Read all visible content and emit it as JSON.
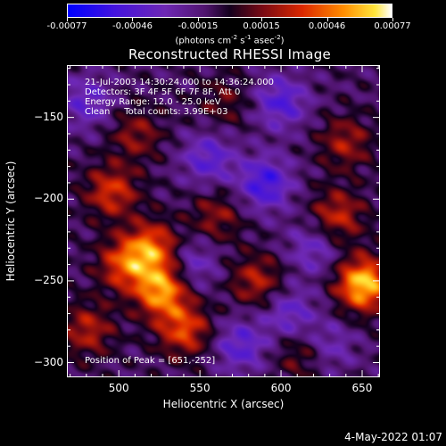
{
  "colorbar": {
    "ticks": [
      "-0.00077",
      "-0.00046",
      "-0.00015",
      "0.00015",
      "0.00046",
      "0.00077"
    ],
    "units_prefix": "(photons cm",
    "units_e1": "-2",
    "units_mid": " s",
    "units_e2": "-1",
    "units_mid2": " asec",
    "units_e3": "-2",
    "units_suffix": ")"
  },
  "chart_data": {
    "type": "heatmap",
    "title": "Reconstructed RHESSI Image",
    "xlabel": "Heliocentric X (arcsec)",
    "ylabel": "Heliocentric Y (arcsec)",
    "xlim": [
      468,
      661
    ],
    "ylim": [
      -309,
      -118
    ],
    "xticks": [
      500,
      550,
      600,
      650
    ],
    "yticks": [
      -150,
      -200,
      -250,
      -300
    ],
    "colorbar_range": [
      -0.00077,
      0.00077
    ],
    "peak_position": [
      651,
      -252
    ],
    "hotspots": [
      {
        "x": 651,
        "y": -252,
        "intensity": 1.0
      },
      {
        "x": 526,
        "y": -256,
        "intensity": 0.85
      },
      {
        "x": 520,
        "y": -230,
        "intensity": 0.7
      },
      {
        "x": 503,
        "y": -240,
        "intensity": 0.6
      },
      {
        "x": 495,
        "y": -195,
        "intensity": 0.55
      },
      {
        "x": 540,
        "y": -280,
        "intensity": 0.6
      },
      {
        "x": 585,
        "y": -250,
        "intensity": 0.45
      },
      {
        "x": 635,
        "y": -210,
        "intensity": 0.5
      },
      {
        "x": 640,
        "y": -165,
        "intensity": 0.4
      },
      {
        "x": 560,
        "y": -210,
        "intensity": 0.35
      },
      {
        "x": 510,
        "y": -160,
        "intensity": 0.35
      },
      {
        "x": 612,
        "y": -295,
        "intensity": 0.3
      },
      {
        "x": 480,
        "y": -280,
        "intensity": 0.45
      },
      {
        "x": 565,
        "y": -140,
        "intensity": 0.25
      }
    ],
    "coldspots": [
      {
        "x": 590,
        "y": -190,
        "intensity": -0.6
      },
      {
        "x": 555,
        "y": -175,
        "intensity": -0.45
      },
      {
        "x": 600,
        "y": -140,
        "intensity": -0.5
      },
      {
        "x": 575,
        "y": -290,
        "intensity": -0.45
      },
      {
        "x": 620,
        "y": -230,
        "intensity": -0.35
      },
      {
        "x": 480,
        "y": -140,
        "intensity": -0.4
      },
      {
        "x": 545,
        "y": -240,
        "intensity": -0.35
      },
      {
        "x": 630,
        "y": -290,
        "intensity": -0.3
      },
      {
        "x": 605,
        "y": -270,
        "intensity": -0.4
      }
    ],
    "colors": {
      "negative_high": "#0000ff",
      "negative_mid": "#6600cc",
      "background": "#5a1a7a",
      "zero": "#120018",
      "positive_mid": "#cc2200",
      "positive_high": "#ffcc00",
      "max": "#ffffff"
    }
  },
  "info": {
    "line1": "21-Jul-2003 14:30:24.000 to 14:36:24.000",
    "line2": "Detectors: 3F 4F 5F 6F 7F 8F, Att 0",
    "line3": "Energy Range: 12.0 - 25.0 keV",
    "line4": "Clean     Total counts: 3.99E+03"
  },
  "peak_label": "Position of Peak = [651,-252]",
  "timestamp": "4-May-2022 01:07"
}
